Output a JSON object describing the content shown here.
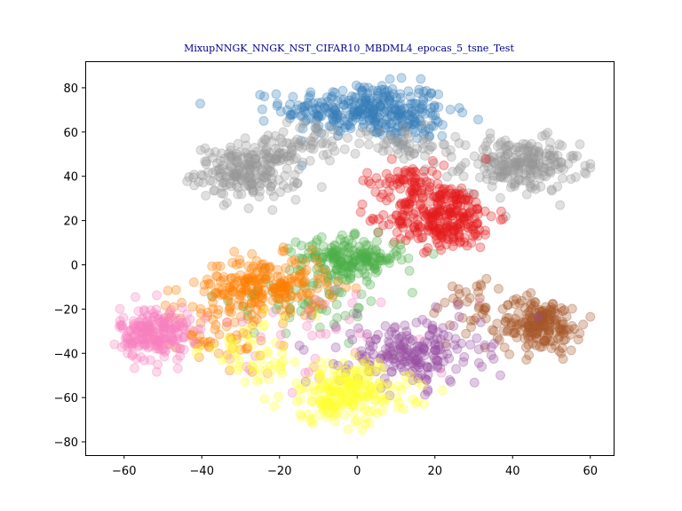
{
  "chart_data": {
    "type": "scatter",
    "title": "MixupNNGK_NNGK_NST_CIFAR10_MBDML4_epocas_5_tsne_Test",
    "xlabel": "",
    "ylabel": "",
    "xlim": [
      -70,
      66
    ],
    "ylim": [
      -86,
      92
    ],
    "x_ticks": [
      -60,
      -40,
      -20,
      0,
      20,
      40,
      60
    ],
    "y_ticks": [
      -80,
      -60,
      -40,
      -20,
      0,
      20,
      40,
      60,
      80
    ],
    "grid": false,
    "legend": "none",
    "marker_alpha": 0.3,
    "series": [
      {
        "color": "#377eb8",
        "clusters": [
          {
            "cx": 2,
            "cy": 70,
            "sx": 14,
            "sy": 8,
            "n": 300
          },
          {
            "cx": 15,
            "cy": 63,
            "sx": 6,
            "sy": 5,
            "n": 40
          }
        ]
      },
      {
        "color": "#999999",
        "clusters": [
          {
            "cx": -28,
            "cy": 42,
            "sx": 9,
            "sy": 8,
            "n": 210
          },
          {
            "cx": -15,
            "cy": 55,
            "sx": 8,
            "sy": 6,
            "n": 60
          },
          {
            "cx": 42,
            "cy": 45,
            "sx": 10,
            "sy": 8,
            "n": 230
          },
          {
            "cx": 12,
            "cy": 55,
            "sx": 8,
            "sy": 6,
            "n": 50
          }
        ]
      },
      {
        "color": "#e41a1c",
        "clusters": [
          {
            "cx": 22,
            "cy": 22,
            "sx": 9,
            "sy": 10,
            "n": 280
          },
          {
            "cx": 12,
            "cy": 38,
            "sx": 7,
            "sy": 6,
            "n": 60
          }
        ]
      },
      {
        "color": "#4daf4a",
        "clusters": [
          {
            "cx": -2,
            "cy": 3,
            "sx": 9,
            "sy": 6,
            "n": 190
          },
          {
            "cx": -12,
            "cy": -15,
            "sx": 14,
            "sy": 12,
            "n": 70
          }
        ]
      },
      {
        "color": "#ff7f00",
        "clusters": [
          {
            "cx": -24,
            "cy": -10,
            "sx": 11,
            "sy": 9,
            "n": 230
          },
          {
            "cx": -38,
            "cy": -30,
            "sx": 10,
            "sy": 10,
            "n": 60
          }
        ]
      },
      {
        "color": "#f781bf",
        "clusters": [
          {
            "cx": -52,
            "cy": -31,
            "sx": 6,
            "sy": 8,
            "n": 220
          },
          {
            "cx": -5,
            "cy": -30,
            "sx": 20,
            "sy": 15,
            "n": 40
          }
        ]
      },
      {
        "color": "#a65628",
        "clusters": [
          {
            "cx": 47,
            "cy": -27,
            "sx": 7,
            "sy": 8,
            "n": 190
          },
          {
            "cx": 30,
            "cy": -20,
            "sx": 8,
            "sy": 10,
            "n": 40
          }
        ]
      },
      {
        "color": "#984ea3",
        "clusters": [
          {
            "cx": 14,
            "cy": -40,
            "sx": 12,
            "sy": 10,
            "n": 210
          }
        ]
      },
      {
        "color": "#ffff33",
        "clusters": [
          {
            "cx": -3,
            "cy": -58,
            "sx": 11,
            "sy": 9,
            "n": 230
          },
          {
            "cx": -25,
            "cy": -40,
            "sx": 10,
            "sy": 10,
            "n": 50
          }
        ]
      }
    ]
  }
}
